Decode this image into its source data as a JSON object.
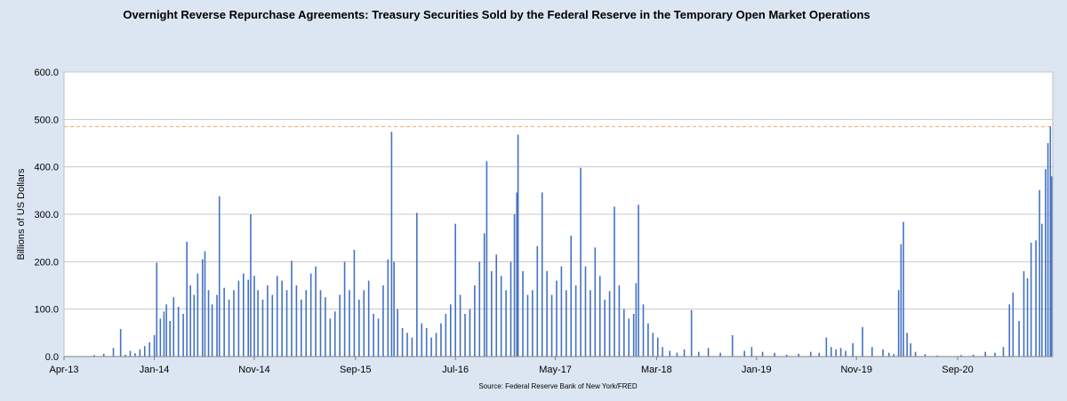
{
  "chart_data": {
    "type": "bar",
    "title": "Overnight Reverse Repurchase Agreements: Treasury Securities Sold by the Federal Reserve in the Temporary Open Market Operations",
    "ylabel": "Billions of US Dollars",
    "xlabel": "",
    "source": "Source: Federal Reserve Bank of New York/FRED",
    "ylim": [
      0,
      600
    ],
    "yticks": [
      "0.0",
      "100.0",
      "200.0",
      "300.0",
      "400.0",
      "500.0",
      "600.0"
    ],
    "yticks_values": [
      0,
      100,
      200,
      300,
      400,
      500,
      600
    ],
    "xlim": [
      2013.25,
      2021.46
    ],
    "xticks": [
      "Apr-13",
      "Jan-14",
      "Nov-14",
      "Sep-15",
      "Jul-16",
      "May-17",
      "Mar-18",
      "Jan-19",
      "Nov-19",
      "Sep-20"
    ],
    "xticks_values": [
      2013.25,
      2014.0,
      2014.83,
      2015.67,
      2016.5,
      2017.33,
      2018.17,
      2019.0,
      2019.83,
      2020.67
    ],
    "reference_line": {
      "value": 485,
      "style": "dashed",
      "color": "#f4a460"
    },
    "series": [
      {
        "name": "Overnight Reverse Repurchase Agreements",
        "color": "#4472c4",
        "values": [
          [
            2013.3,
            0
          ],
          [
            2013.4,
            1
          ],
          [
            2013.5,
            3
          ],
          [
            2013.58,
            6
          ],
          [
            2013.66,
            18
          ],
          [
            2013.72,
            58
          ],
          [
            2013.76,
            4
          ],
          [
            2013.8,
            12
          ],
          [
            2013.84,
            7
          ],
          [
            2013.88,
            15
          ],
          [
            2013.92,
            22
          ],
          [
            2013.96,
            30
          ],
          [
            2014.0,
            45
          ],
          [
            2014.02,
            198
          ],
          [
            2014.05,
            80
          ],
          [
            2014.08,
            95
          ],
          [
            2014.1,
            110
          ],
          [
            2014.13,
            75
          ],
          [
            2014.16,
            125
          ],
          [
            2014.2,
            105
          ],
          [
            2014.24,
            90
          ],
          [
            2014.27,
            242
          ],
          [
            2014.3,
            150
          ],
          [
            2014.33,
            130
          ],
          [
            2014.36,
            175
          ],
          [
            2014.4,
            205
          ],
          [
            2014.42,
            222
          ],
          [
            2014.45,
            140
          ],
          [
            2014.48,
            110
          ],
          [
            2014.52,
            130
          ],
          [
            2014.54,
            338
          ],
          [
            2014.58,
            145
          ],
          [
            2014.62,
            120
          ],
          [
            2014.66,
            140
          ],
          [
            2014.7,
            160
          ],
          [
            2014.74,
            175
          ],
          [
            2014.78,
            162
          ],
          [
            2014.8,
            300
          ],
          [
            2014.83,
            170
          ],
          [
            2014.86,
            140
          ],
          [
            2014.9,
            120
          ],
          [
            2014.94,
            150
          ],
          [
            2014.98,
            130
          ],
          [
            2015.02,
            170
          ],
          [
            2015.06,
            160
          ],
          [
            2015.1,
            140
          ],
          [
            2015.14,
            202
          ],
          [
            2015.18,
            150
          ],
          [
            2015.22,
            120
          ],
          [
            2015.26,
            140
          ],
          [
            2015.3,
            175
          ],
          [
            2015.34,
            190
          ],
          [
            2015.38,
            140
          ],
          [
            2015.42,
            125
          ],
          [
            2015.46,
            80
          ],
          [
            2015.5,
            95
          ],
          [
            2015.54,
            130
          ],
          [
            2015.58,
            200
          ],
          [
            2015.62,
            140
          ],
          [
            2015.66,
            225
          ],
          [
            2015.7,
            120
          ],
          [
            2015.74,
            140
          ],
          [
            2015.78,
            160
          ],
          [
            2015.82,
            90
          ],
          [
            2015.86,
            80
          ],
          [
            2015.9,
            150
          ],
          [
            2015.94,
            205
          ],
          [
            2015.97,
            474
          ],
          [
            2015.99,
            200
          ],
          [
            2016.02,
            100
          ],
          [
            2016.06,
            60
          ],
          [
            2016.1,
            50
          ],
          [
            2016.14,
            40
          ],
          [
            2016.18,
            303
          ],
          [
            2016.22,
            70
          ],
          [
            2016.26,
            60
          ],
          [
            2016.3,
            40
          ],
          [
            2016.34,
            50
          ],
          [
            2016.38,
            70
          ],
          [
            2016.42,
            90
          ],
          [
            2016.46,
            110
          ],
          [
            2016.5,
            280
          ],
          [
            2016.54,
            130
          ],
          [
            2016.58,
            90
          ],
          [
            2016.62,
            100
          ],
          [
            2016.66,
            150
          ],
          [
            2016.7,
            200
          ],
          [
            2016.74,
            260
          ],
          [
            2016.76,
            412
          ],
          [
            2016.8,
            180
          ],
          [
            2016.84,
            215
          ],
          [
            2016.88,
            170
          ],
          [
            2016.92,
            140
          ],
          [
            2016.96,
            200
          ],
          [
            2016.99,
            300
          ],
          [
            2017.01,
            346
          ],
          [
            2017.02,
            468
          ],
          [
            2017.06,
            180
          ],
          [
            2017.1,
            130
          ],
          [
            2017.14,
            140
          ],
          [
            2017.18,
            233
          ],
          [
            2017.22,
            346
          ],
          [
            2017.26,
            180
          ],
          [
            2017.3,
            130
          ],
          [
            2017.34,
            160
          ],
          [
            2017.38,
            190
          ],
          [
            2017.42,
            140
          ],
          [
            2017.46,
            255
          ],
          [
            2017.5,
            150
          ],
          [
            2017.54,
            398
          ],
          [
            2017.58,
            190
          ],
          [
            2017.62,
            140
          ],
          [
            2017.66,
            230
          ],
          [
            2017.7,
            170
          ],
          [
            2017.74,
            120
          ],
          [
            2017.78,
            138
          ],
          [
            2017.82,
            316
          ],
          [
            2017.86,
            150
          ],
          [
            2017.9,
            100
          ],
          [
            2017.94,
            80
          ],
          [
            2017.98,
            90
          ],
          [
            2018.0,
            155
          ],
          [
            2018.02,
            320
          ],
          [
            2018.06,
            110
          ],
          [
            2018.1,
            70
          ],
          [
            2018.14,
            50
          ],
          [
            2018.18,
            40
          ],
          [
            2018.22,
            20
          ],
          [
            2018.28,
            12
          ],
          [
            2018.34,
            8
          ],
          [
            2018.4,
            15
          ],
          [
            2018.46,
            98
          ],
          [
            2018.52,
            10
          ],
          [
            2018.6,
            18
          ],
          [
            2018.7,
            8
          ],
          [
            2018.8,
            45
          ],
          [
            2018.9,
            12
          ],
          [
            2018.96,
            20
          ],
          [
            2019.05,
            10
          ],
          [
            2019.15,
            8
          ],
          [
            2019.25,
            4
          ],
          [
            2019.35,
            6
          ],
          [
            2019.45,
            10
          ],
          [
            2019.52,
            8
          ],
          [
            2019.58,
            40
          ],
          [
            2019.62,
            20
          ],
          [
            2019.66,
            15
          ],
          [
            2019.7,
            18
          ],
          [
            2019.74,
            12
          ],
          [
            2019.8,
            28
          ],
          [
            2019.88,
            62
          ],
          [
            2019.96,
            20
          ],
          [
            2020.05,
            15
          ],
          [
            2020.1,
            8
          ],
          [
            2020.14,
            5
          ],
          [
            2020.18,
            140
          ],
          [
            2020.2,
            237
          ],
          [
            2020.22,
            284
          ],
          [
            2020.25,
            50
          ],
          [
            2020.28,
            28
          ],
          [
            2020.32,
            10
          ],
          [
            2020.4,
            5
          ],
          [
            2020.5,
            2
          ],
          [
            2020.6,
            1
          ],
          [
            2020.7,
            3
          ],
          [
            2020.8,
            4
          ],
          [
            2020.9,
            10
          ],
          [
            2020.98,
            8
          ],
          [
            2021.05,
            20
          ],
          [
            2021.1,
            110
          ],
          [
            2021.13,
            135
          ],
          [
            2021.18,
            75
          ],
          [
            2021.22,
            180
          ],
          [
            2021.25,
            165
          ],
          [
            2021.28,
            240
          ],
          [
            2021.32,
            245
          ],
          [
            2021.35,
            351
          ],
          [
            2021.37,
            280
          ],
          [
            2021.4,
            395
          ],
          [
            2021.42,
            450
          ],
          [
            2021.44,
            485
          ],
          [
            2021.45,
            380
          ]
        ]
      }
    ]
  }
}
